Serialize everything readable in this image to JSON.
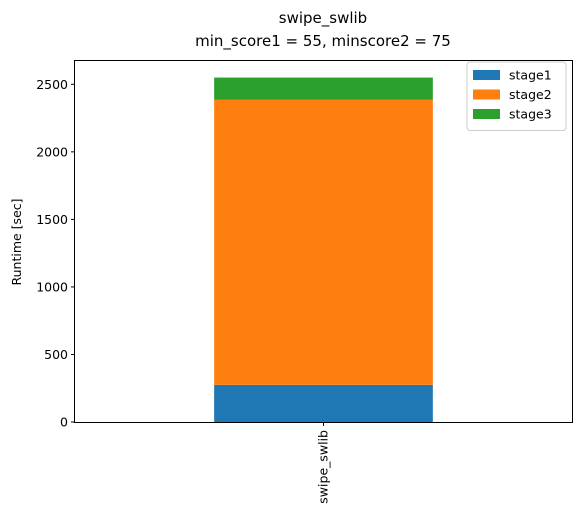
{
  "chart_data": {
    "type": "bar",
    "stacked": true,
    "title": "swipe_swlib",
    "subtitle": "min_score1 = 55, minscore2 = 75",
    "xlabel": "",
    "ylabel": "Runtime [sec]",
    "categories": [
      "swipe_swlib"
    ],
    "series": [
      {
        "name": "stage1",
        "values": [
          275
        ],
        "color": "#1f77b4"
      },
      {
        "name": "stage2",
        "values": [
          2110
        ],
        "color": "#ff7f0e"
      },
      {
        "name": "stage3",
        "values": [
          165
        ],
        "color": "#2ca02c"
      }
    ],
    "ylim": [
      0,
      2680
    ],
    "yticks": [
      0,
      500,
      1000,
      1500,
      2000,
      2500
    ],
    "grid": false,
    "legend": "top-right"
  }
}
